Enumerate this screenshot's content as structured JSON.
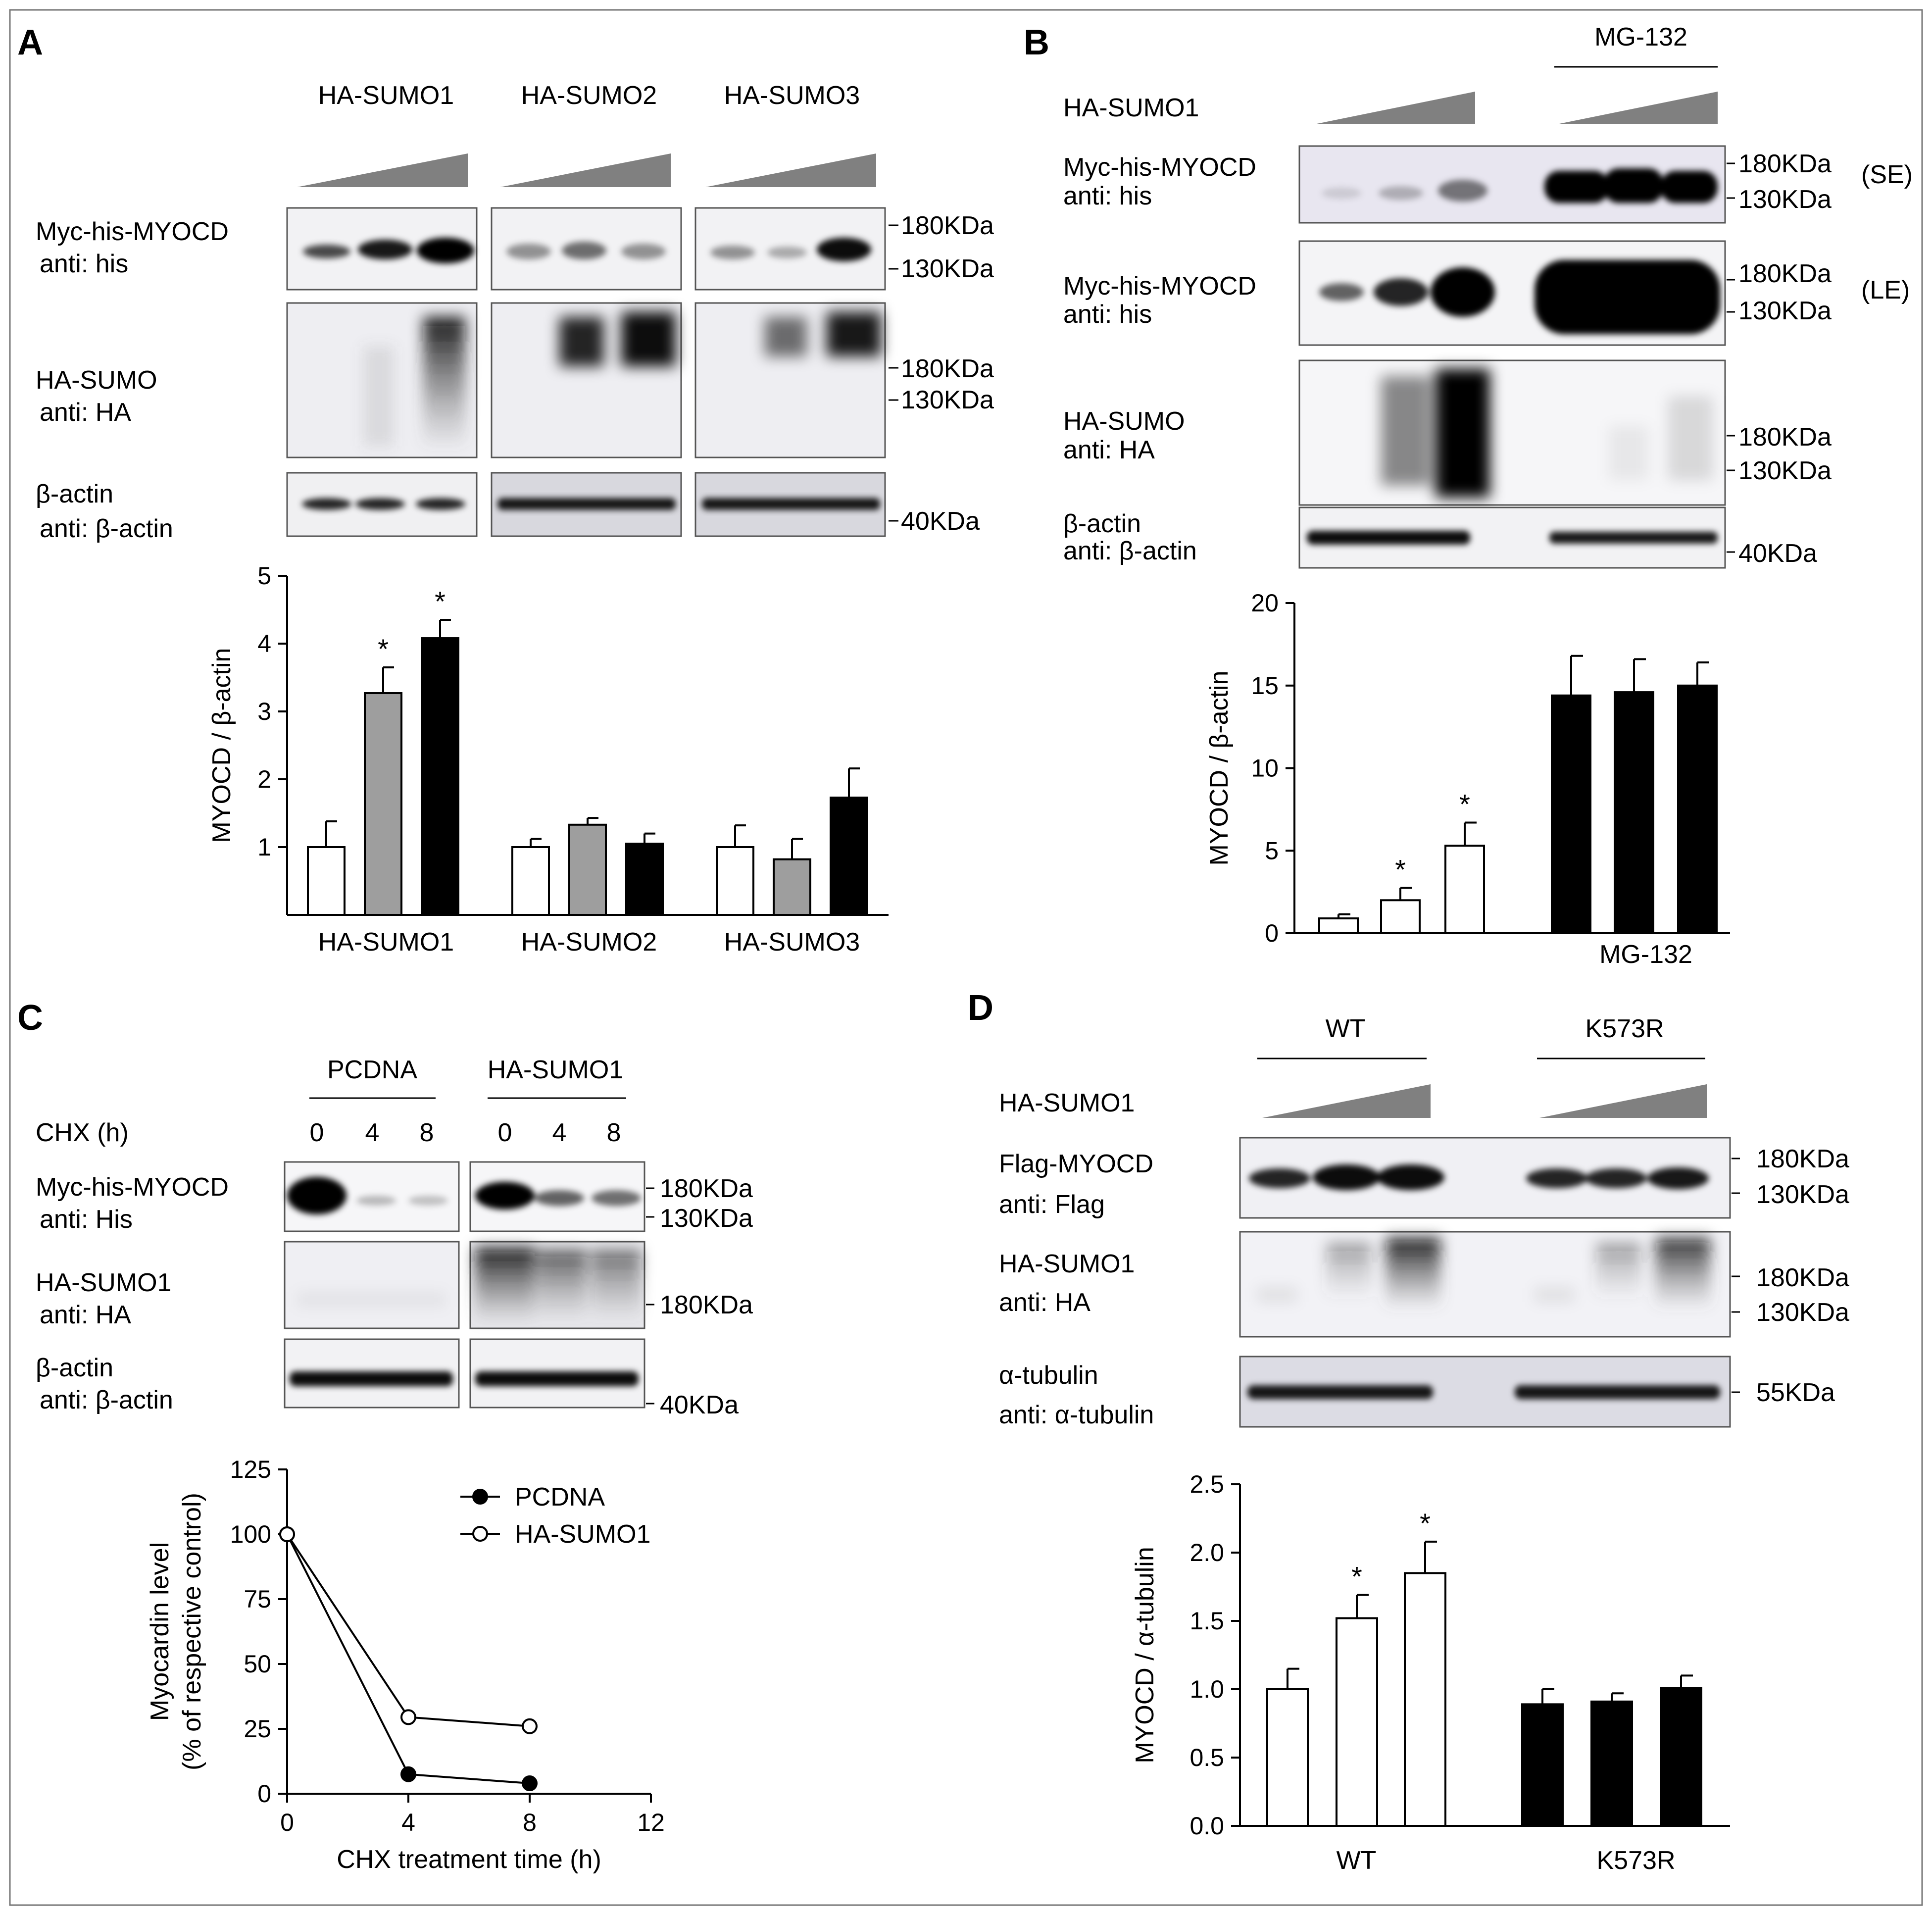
{
  "panels": {
    "A": {
      "letter": "A",
      "groups": [
        "HA-SUMO1",
        "HA-SUMO2",
        "HA-SUMO3"
      ],
      "rows": [
        {
          "line1": "Myc-his-MYOCD",
          "line2": "anti: his"
        },
        {
          "line1": "HA-SUMO",
          "line2": "anti: HA"
        },
        {
          "line1": "β-actin",
          "line2": "anti: β-actin"
        }
      ],
      "markers": {
        "his_180": "180KDa",
        "his_130": "130KDa",
        "ha_180": "180KDa",
        "ha_130": "130KDa",
        "actin_40": "40KDa"
      }
    },
    "B": {
      "letter": "B",
      "mg132": "MG-132",
      "sumo1": "HA-SUMO1",
      "rows": [
        {
          "line1": "Myc-his-MYOCD",
          "line2": "anti: his",
          "tag": "(SE)"
        },
        {
          "line1": "Myc-his-MYOCD",
          "line2": "anti: his",
          "tag": "(LE)"
        },
        {
          "line1": "HA-SUMO",
          "line2": "anti: HA"
        },
        {
          "line1": "β-actin",
          "line2": "anti: β-actin"
        }
      ],
      "markers": {
        "se_180": "180KDa",
        "se_130": "130KDa",
        "le_180": "180KDa",
        "le_130": "130KDa",
        "ha_180": "180KDa",
        "ha_130": "130KDa",
        "actin_40": "40KDa"
      }
    },
    "C": {
      "letter": "C",
      "groups": [
        "PCDNA",
        "HA-SUMO1"
      ],
      "chx": "CHX (h)",
      "times": [
        "0",
        "4",
        "8",
        "0",
        "4",
        "8"
      ],
      "rows": [
        {
          "line1": "Myc-his-MYOCD",
          "line2": "anti: His"
        },
        {
          "line1": "HA-SUMO1",
          "line2": "anti: HA"
        },
        {
          "line1": "β-actin",
          "line2": "anti: β-actin"
        }
      ],
      "markers": {
        "his_180": "180KDa",
        "his_130": "130KDa",
        "ha_180": "180KDa",
        "actin_40": "40KDa"
      }
    },
    "D": {
      "letter": "D",
      "groups": [
        "WT",
        "K573R"
      ],
      "sumo1": "HA-SUMO1",
      "rows": [
        {
          "line1": "Flag-MYOCD",
          "line2": "anti: Flag"
        },
        {
          "line1": "HA-SUMO1",
          "line2": "anti: HA"
        },
        {
          "line1": "α-tubulin",
          "line2": "anti: α-tubulin"
        }
      ],
      "markers": {
        "flag_180": "180KDa",
        "flag_130": "130KDa",
        "ha_180": "180KDa",
        "ha_130": "130KDa",
        "tub_55": "55KDa"
      }
    }
  },
  "chart_data": [
    {
      "id": "A",
      "type": "bar",
      "ylabel": "MYOCD / β-actin",
      "ylim": [
        0,
        5
      ],
      "yticks": [
        1,
        2,
        3,
        4,
        5
      ],
      "categories": [
        "HA-SUMO1",
        "HA-SUMO2",
        "HA-SUMO3"
      ],
      "bars": [
        {
          "group": 0,
          "value": 1.0,
          "error": 0.38,
          "fill": "#ffffff",
          "sig": ""
        },
        {
          "group": 0,
          "value": 3.27,
          "error": 0.38,
          "fill": "#9e9e9e",
          "sig": "*"
        },
        {
          "group": 0,
          "value": 4.08,
          "error": 0.27,
          "fill": "#000000",
          "sig": "*"
        },
        {
          "group": 1,
          "value": 1.0,
          "error": 0.12,
          "fill": "#ffffff",
          "sig": ""
        },
        {
          "group": 1,
          "value": 1.33,
          "error": 0.1,
          "fill": "#9e9e9e",
          "sig": ""
        },
        {
          "group": 1,
          "value": 1.05,
          "error": 0.15,
          "fill": "#000000",
          "sig": ""
        },
        {
          "group": 2,
          "value": 1.0,
          "error": 0.32,
          "fill": "#ffffff",
          "sig": ""
        },
        {
          "group": 2,
          "value": 0.82,
          "error": 0.3,
          "fill": "#9e9e9e",
          "sig": ""
        },
        {
          "group": 2,
          "value": 1.73,
          "error": 0.43,
          "fill": "#000000",
          "sig": ""
        }
      ]
    },
    {
      "id": "B",
      "type": "bar",
      "ylabel": "MYOCD / β-actin",
      "ylim": [
        0,
        20
      ],
      "yticks": [
        0,
        5,
        10,
        15,
        20
      ],
      "categories": [
        "",
        "MG-132"
      ],
      "bars": [
        {
          "group": 0,
          "value": 0.9,
          "error": 0.25,
          "fill": "#ffffff",
          "sig": ""
        },
        {
          "group": 0,
          "value": 2.0,
          "error": 0.75,
          "fill": "#ffffff",
          "sig": "*"
        },
        {
          "group": 0,
          "value": 5.3,
          "error": 1.4,
          "fill": "#ffffff",
          "sig": "*"
        },
        {
          "group": 1,
          "value": 14.4,
          "error": 2.4,
          "fill": "#000000",
          "sig": ""
        },
        {
          "group": 1,
          "value": 14.6,
          "error": 2.0,
          "fill": "#000000",
          "sig": ""
        },
        {
          "group": 1,
          "value": 15.0,
          "error": 1.4,
          "fill": "#000000",
          "sig": ""
        }
      ]
    },
    {
      "id": "C",
      "type": "line",
      "xlabel": "CHX treatment time (h)",
      "ylabel_line1": "Myocardin level",
      "ylabel_line2": "(% of respective control)",
      "xlim": [
        0,
        12
      ],
      "ylim": [
        0,
        125
      ],
      "xticks": [
        0,
        4,
        8,
        12
      ],
      "yticks": [
        0,
        25,
        50,
        75,
        100,
        125
      ],
      "legend_position": "top-right",
      "series": [
        {
          "name": "PCDNA",
          "marker": "filled",
          "x": [
            0,
            4,
            8
          ],
          "y": [
            100,
            7.5,
            4
          ]
        },
        {
          "name": "HA-SUMO1",
          "marker": "open",
          "x": [
            0,
            4,
            8
          ],
          "y": [
            100,
            29.5,
            26
          ]
        }
      ]
    },
    {
      "id": "D",
      "type": "bar",
      "ylabel": "MYOCD / α-tubulin",
      "ylim": [
        0,
        2.5
      ],
      "yticks": [
        "0.0",
        "0.5",
        "1.0",
        "1.5",
        "2.0",
        "2.5"
      ],
      "categories": [
        "WT",
        "K573R"
      ],
      "bars": [
        {
          "group": 0,
          "value": 1.0,
          "error": 0.15,
          "fill": "#ffffff",
          "sig": ""
        },
        {
          "group": 0,
          "value": 1.52,
          "error": 0.17,
          "fill": "#ffffff",
          "sig": "*"
        },
        {
          "group": 0,
          "value": 1.85,
          "error": 0.23,
          "fill": "#ffffff",
          "sig": "*"
        },
        {
          "group": 1,
          "value": 0.89,
          "error": 0.11,
          "fill": "#000000",
          "sig": ""
        },
        {
          "group": 1,
          "value": 0.91,
          "error": 0.06,
          "fill": "#000000",
          "sig": ""
        },
        {
          "group": 1,
          "value": 1.01,
          "error": 0.09,
          "fill": "#000000",
          "sig": ""
        }
      ]
    }
  ]
}
